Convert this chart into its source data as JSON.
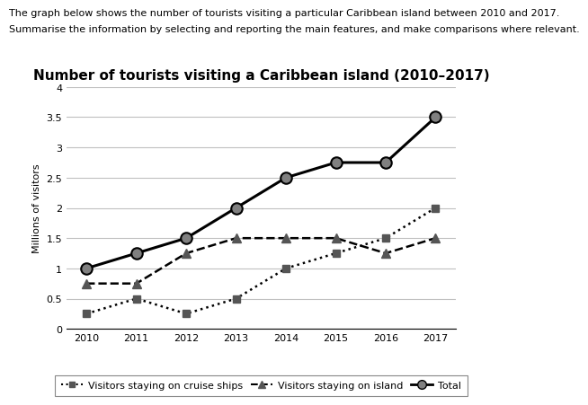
{
  "title": "Number of tourists visiting a Caribbean island (2010–2017)",
  "header_line1": "The graph below shows the number of tourists visiting a particular Caribbean island between 2010 and 2017.",
  "header_line2": "Summarise the information by selecting and reporting the main features, and make comparisons where relevant.",
  "ylabel": "Millions of visitors",
  "years": [
    2010,
    2011,
    2012,
    2013,
    2014,
    2015,
    2016,
    2017
  ],
  "cruise_ships": [
    0.25,
    0.5,
    0.25,
    0.5,
    1.0,
    1.25,
    1.5,
    2.0
  ],
  "on_island": [
    0.75,
    0.75,
    1.25,
    1.5,
    1.5,
    1.5,
    1.25,
    1.5
  ],
  "total": [
    1.0,
    1.25,
    1.5,
    2.0,
    2.5,
    2.75,
    2.75,
    3.5
  ],
  "ylim": [
    0,
    4
  ],
  "yticks": [
    0,
    0.5,
    1.0,
    1.5,
    2.0,
    2.5,
    3.0,
    3.5,
    4.0
  ],
  "background_color": "#ffffff",
  "grid_color": "#c0c0c0",
  "line_color": "#000000",
  "marker_gray": "#808080",
  "marker_dark": "#555555",
  "title_fontsize": 11,
  "header_fontsize": 8,
  "label_fontsize": 8,
  "tick_fontsize": 8,
  "legend_fontsize": 8
}
